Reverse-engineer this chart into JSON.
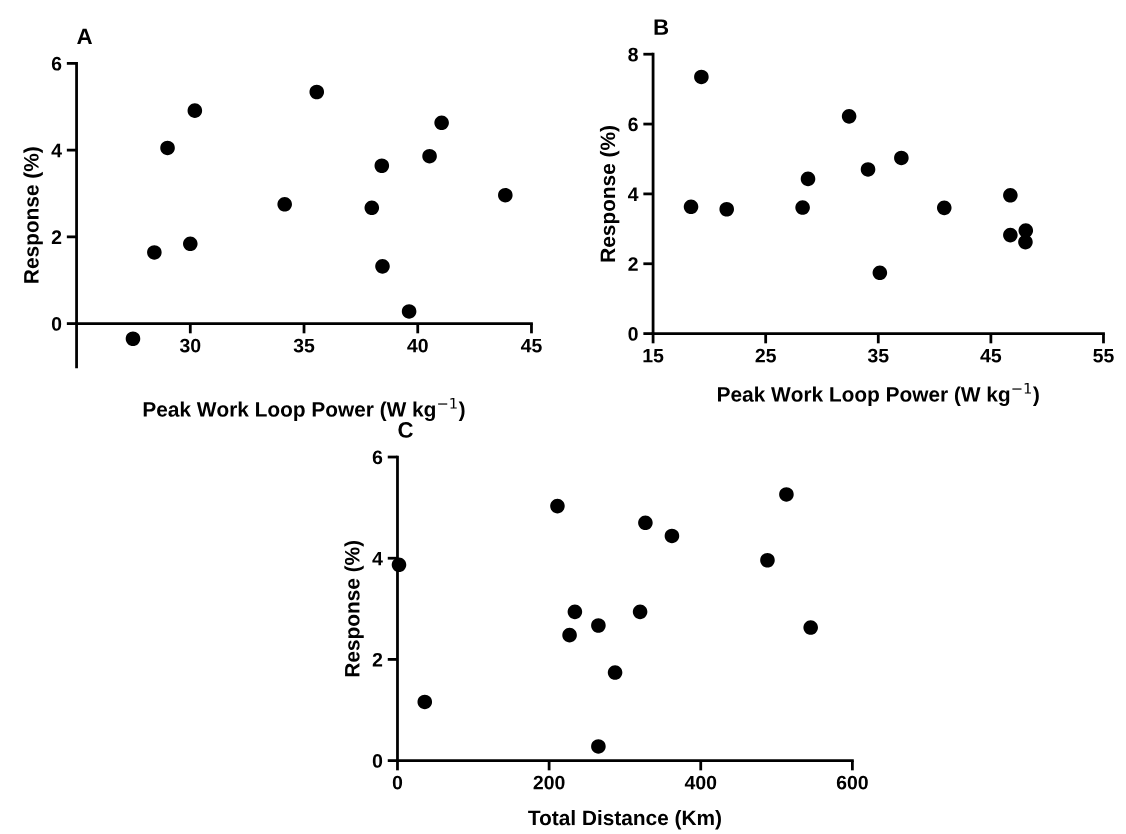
{
  "chart_data": [
    {
      "type": "scatter",
      "title": "A",
      "xlabel": "Peak Work Loop Power (W kg$^{−1}$)",
      "ylabel": "Response (%)",
      "color": "#000000",
      "marker": "circle",
      "x": [
        27.48,
        28.42,
        29.0,
        30.0,
        30.2,
        34.15,
        35.56,
        37.98,
        38.42,
        38.45,
        39.62,
        40.52,
        41.05,
        43.85
      ],
      "values": [
        -0.35,
        1.64,
        4.05,
        1.84,
        4.91,
        2.75,
        5.34,
        2.67,
        3.64,
        1.32,
        0.28,
        3.86,
        4.63,
        2.96
      ],
      "xlim": [
        25,
        45
      ],
      "xticks": [
        30,
        35,
        40,
        45
      ],
      "ylim": [
        -1,
        6
      ],
      "yticks": [
        0,
        2,
        4,
        6
      ],
      "grid": false,
      "legend": false
    },
    {
      "type": "scatter",
      "title": "B",
      "xlabel": "Peak Work Loop Power (W kg$^{−1}$)",
      "ylabel": "Response (%)",
      "color": "#000000",
      "marker": "circle",
      "x": [
        18.37,
        19.29,
        21.54,
        28.28,
        28.76,
        32.41,
        34.09,
        35.14,
        37.05,
        40.86,
        46.73,
        46.73,
        48.1,
        48.07
      ],
      "values": [
        3.63,
        7.35,
        3.56,
        3.61,
        4.43,
        6.22,
        4.7,
        1.74,
        5.03,
        3.6,
        3.96,
        2.82,
        2.95,
        2.62
      ],
      "xlim": [
        15,
        55
      ],
      "xticks": [
        15,
        25,
        35,
        45,
        55
      ],
      "ylim": [
        0,
        8
      ],
      "yticks": [
        0,
        2,
        4,
        6,
        8
      ],
      "grid": false,
      "legend": false
    },
    {
      "type": "scatter",
      "title": "C",
      "xlabel": "Total Distance (Km)",
      "ylabel": "Response (%)",
      "color": "#000000",
      "marker": "circle",
      "x": [
        2,
        36,
        211,
        227,
        234,
        265,
        265,
        287,
        320,
        327,
        362,
        488,
        513,
        545
      ],
      "values": [
        3.87,
        1.16,
        5.03,
        2.48,
        2.94,
        2.67,
        0.28,
        1.74,
        2.94,
        4.7,
        4.44,
        3.96,
        5.26,
        2.63
      ],
      "xlim": [
        0,
        600
      ],
      "xticks": [
        0,
        200,
        400,
        600
      ],
      "ylim": [
        0,
        6
      ],
      "yticks": [
        0,
        2,
        4,
        6
      ],
      "grid": false,
      "legend": false
    }
  ]
}
